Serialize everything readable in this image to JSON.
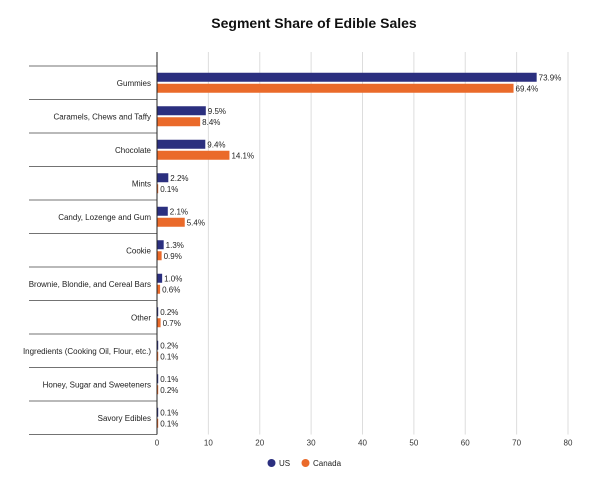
{
  "chart_data": {
    "type": "bar",
    "orientation": "horizontal",
    "title": "Segment Share of Edible Sales",
    "categories": [
      "Gummies",
      "Caramels, Chews and Taffy",
      "Chocolate",
      "Mints",
      "Candy, Lozenge and Gum",
      "Cookie",
      "Brownie, Blondie, and Cereal Bars",
      "Other",
      "Ingredients (Cooking Oil, Flour, etc.)",
      "Honey, Sugar and Sweeteners",
      "Savory Edibles"
    ],
    "series": [
      {
        "name": "US",
        "color": "#2b2f7f",
        "values": [
          73.9,
          9.5,
          9.4,
          2.2,
          2.1,
          1.3,
          1.0,
          0.2,
          0.2,
          0.1,
          0.1
        ],
        "labels": [
          "73.9%",
          "9.5%",
          "9.4%",
          "2.2%",
          "2.1%",
          "1.3%",
          "1.0%",
          "0.2%",
          "0.2%",
          "0.1%",
          "0.1%"
        ]
      },
      {
        "name": "Canada",
        "color": "#ea6a2a",
        "values": [
          69.4,
          8.4,
          14.1,
          0.1,
          5.4,
          0.9,
          0.6,
          0.7,
          0.1,
          0.2,
          0.1
        ],
        "labels": [
          "69.4%",
          "8.4%",
          "14.1%",
          "0.1%",
          "5.4%",
          "0.9%",
          "0.6%",
          "0.7%",
          "0.1%",
          "0.2%",
          "0.1%"
        ]
      }
    ],
    "xlim": [
      0,
      80
    ],
    "xticks": [
      "0",
      "10",
      "20",
      "30",
      "40",
      "50",
      "60",
      "70",
      "80"
    ],
    "grid": true,
    "legend": "bottom-center"
  }
}
